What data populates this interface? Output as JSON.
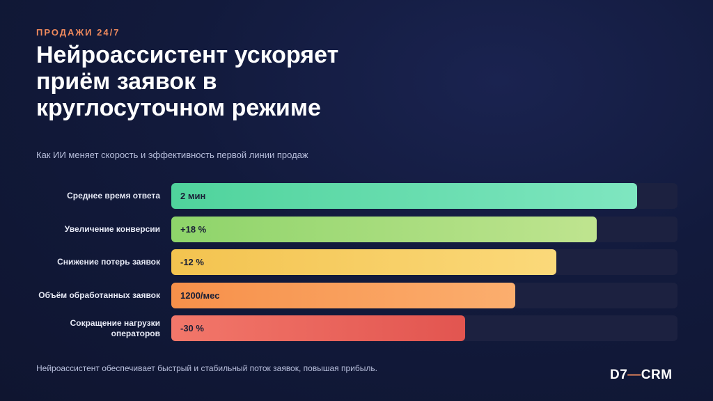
{
  "header": {
    "eyebrow": "ПРОДАЖИ 24/7",
    "title": "Нейроассистент ускоряет приём заявок в круглосуточном режиме",
    "subtitle": "Как ИИ меняет скорость и эффективность первой линии продаж"
  },
  "chart_data": {
    "type": "bar",
    "orientation": "horizontal",
    "categories": [
      "Среднее время ответа",
      "Увеличение конверсии",
      "Снижение потерь заявок",
      "Объём обработанных заявок",
      "Сокращение нагрузки операторов"
    ],
    "value_labels": [
      "2 мин",
      "+18 %",
      "-12 %",
      "1200/мес",
      "-30 %"
    ],
    "relative_fill": [
      0.92,
      0.84,
      0.76,
      0.68,
      0.58
    ],
    "colors": [
      [
        "#4fd39c",
        "#7fe6c0"
      ],
      [
        "#8ed46a",
        "#bfe48f"
      ],
      [
        "#f3c34f",
        "#fbd97a"
      ],
      [
        "#f7904a",
        "#fbae6e"
      ],
      [
        "#f2776a",
        "#e25550"
      ]
    ],
    "track_color": "#1c2140",
    "grid": false,
    "legend": "none"
  },
  "footer": {
    "text": "Нейроассистент обеспечивает быстрый и стабильный поток заявок, повышая прибыль."
  },
  "logo": {
    "left": "D7",
    "dash": "—",
    "right": "CRM"
  }
}
